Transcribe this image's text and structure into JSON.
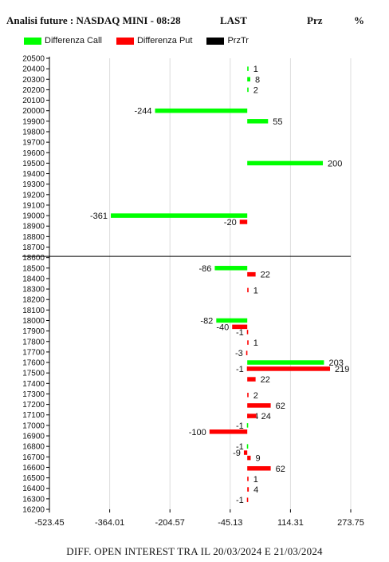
{
  "header": {
    "title": "Analisi future : NASDAQ MINI - 08:28",
    "last_label": "LAST",
    "prz_label": "Prz",
    "pct_label": "%"
  },
  "chart_data": {
    "type": "bar",
    "orientation": "horizontal",
    "title": "Analisi future : NASDAQ MINI - 08:28",
    "xlabel": "DIFF. OPEN INTEREST TRA IL 20/03/2024 E 21/03/2024",
    "ylabel": "",
    "x_ticks": [
      "-523.45",
      "-364.01",
      "-204.57",
      "-45.13",
      "114.31",
      "273.75"
    ],
    "x_tick_values": [
      -523.45,
      -364.01,
      -204.57,
      -45.13,
      114.31,
      273.75
    ],
    "xlim": [
      -523.45,
      273.75
    ],
    "ylim": [
      16200,
      20500
    ],
    "y_step": 100,
    "grid": "vertical",
    "legend_position": "top",
    "series": [
      {
        "name": "Differenza Call",
        "color": "#00ff00",
        "points": [
          {
            "strike": 20400,
            "value": 1
          },
          {
            "strike": 20300,
            "value": 8
          },
          {
            "strike": 20200,
            "value": 2
          },
          {
            "strike": 20000,
            "value": -244
          },
          {
            "strike": 19900,
            "value": 55
          },
          {
            "strike": 19500,
            "value": 200
          },
          {
            "strike": 19000,
            "value": -361
          },
          {
            "strike": 18500,
            "value": -86
          },
          {
            "strike": 18000,
            "value": -82
          },
          {
            "strike": 17600,
            "value": 203
          },
          {
            "strike": 17000,
            "value": -1
          },
          {
            "strike": 16800,
            "value": -1
          }
        ]
      },
      {
        "name": "Differenza Put",
        "color": "#ff0000",
        "points": [
          {
            "strike": 18950,
            "value": -20
          },
          {
            "strike": 18450,
            "value": 22
          },
          {
            "strike": 18300,
            "value": 1
          },
          {
            "strike": 17950,
            "value": -40
          },
          {
            "strike": 17900,
            "value": -1
          },
          {
            "strike": 17800,
            "value": 1
          },
          {
            "strike": 17700,
            "value": -3
          },
          {
            "strike": 17550,
            "value": 219
          },
          {
            "strike": 17550,
            "value": -1
          },
          {
            "strike": 17450,
            "value": 22
          },
          {
            "strike": 17300,
            "value": 2
          },
          {
            "strike": 17200,
            "value": 62
          },
          {
            "strike": 17100,
            "value": 4
          },
          {
            "strike": 17100,
            "value": 24
          },
          {
            "strike": 16950,
            "value": -100
          },
          {
            "strike": 16750,
            "value": -9
          },
          {
            "strike": 16700,
            "value": 9
          },
          {
            "strike": 16600,
            "value": 62
          },
          {
            "strike": 16500,
            "value": 1
          },
          {
            "strike": 16400,
            "value": 4
          },
          {
            "strike": 16300,
            "value": -1
          }
        ]
      },
      {
        "name": "PrzTr",
        "color": "#000000",
        "level": 18600
      }
    ]
  }
}
